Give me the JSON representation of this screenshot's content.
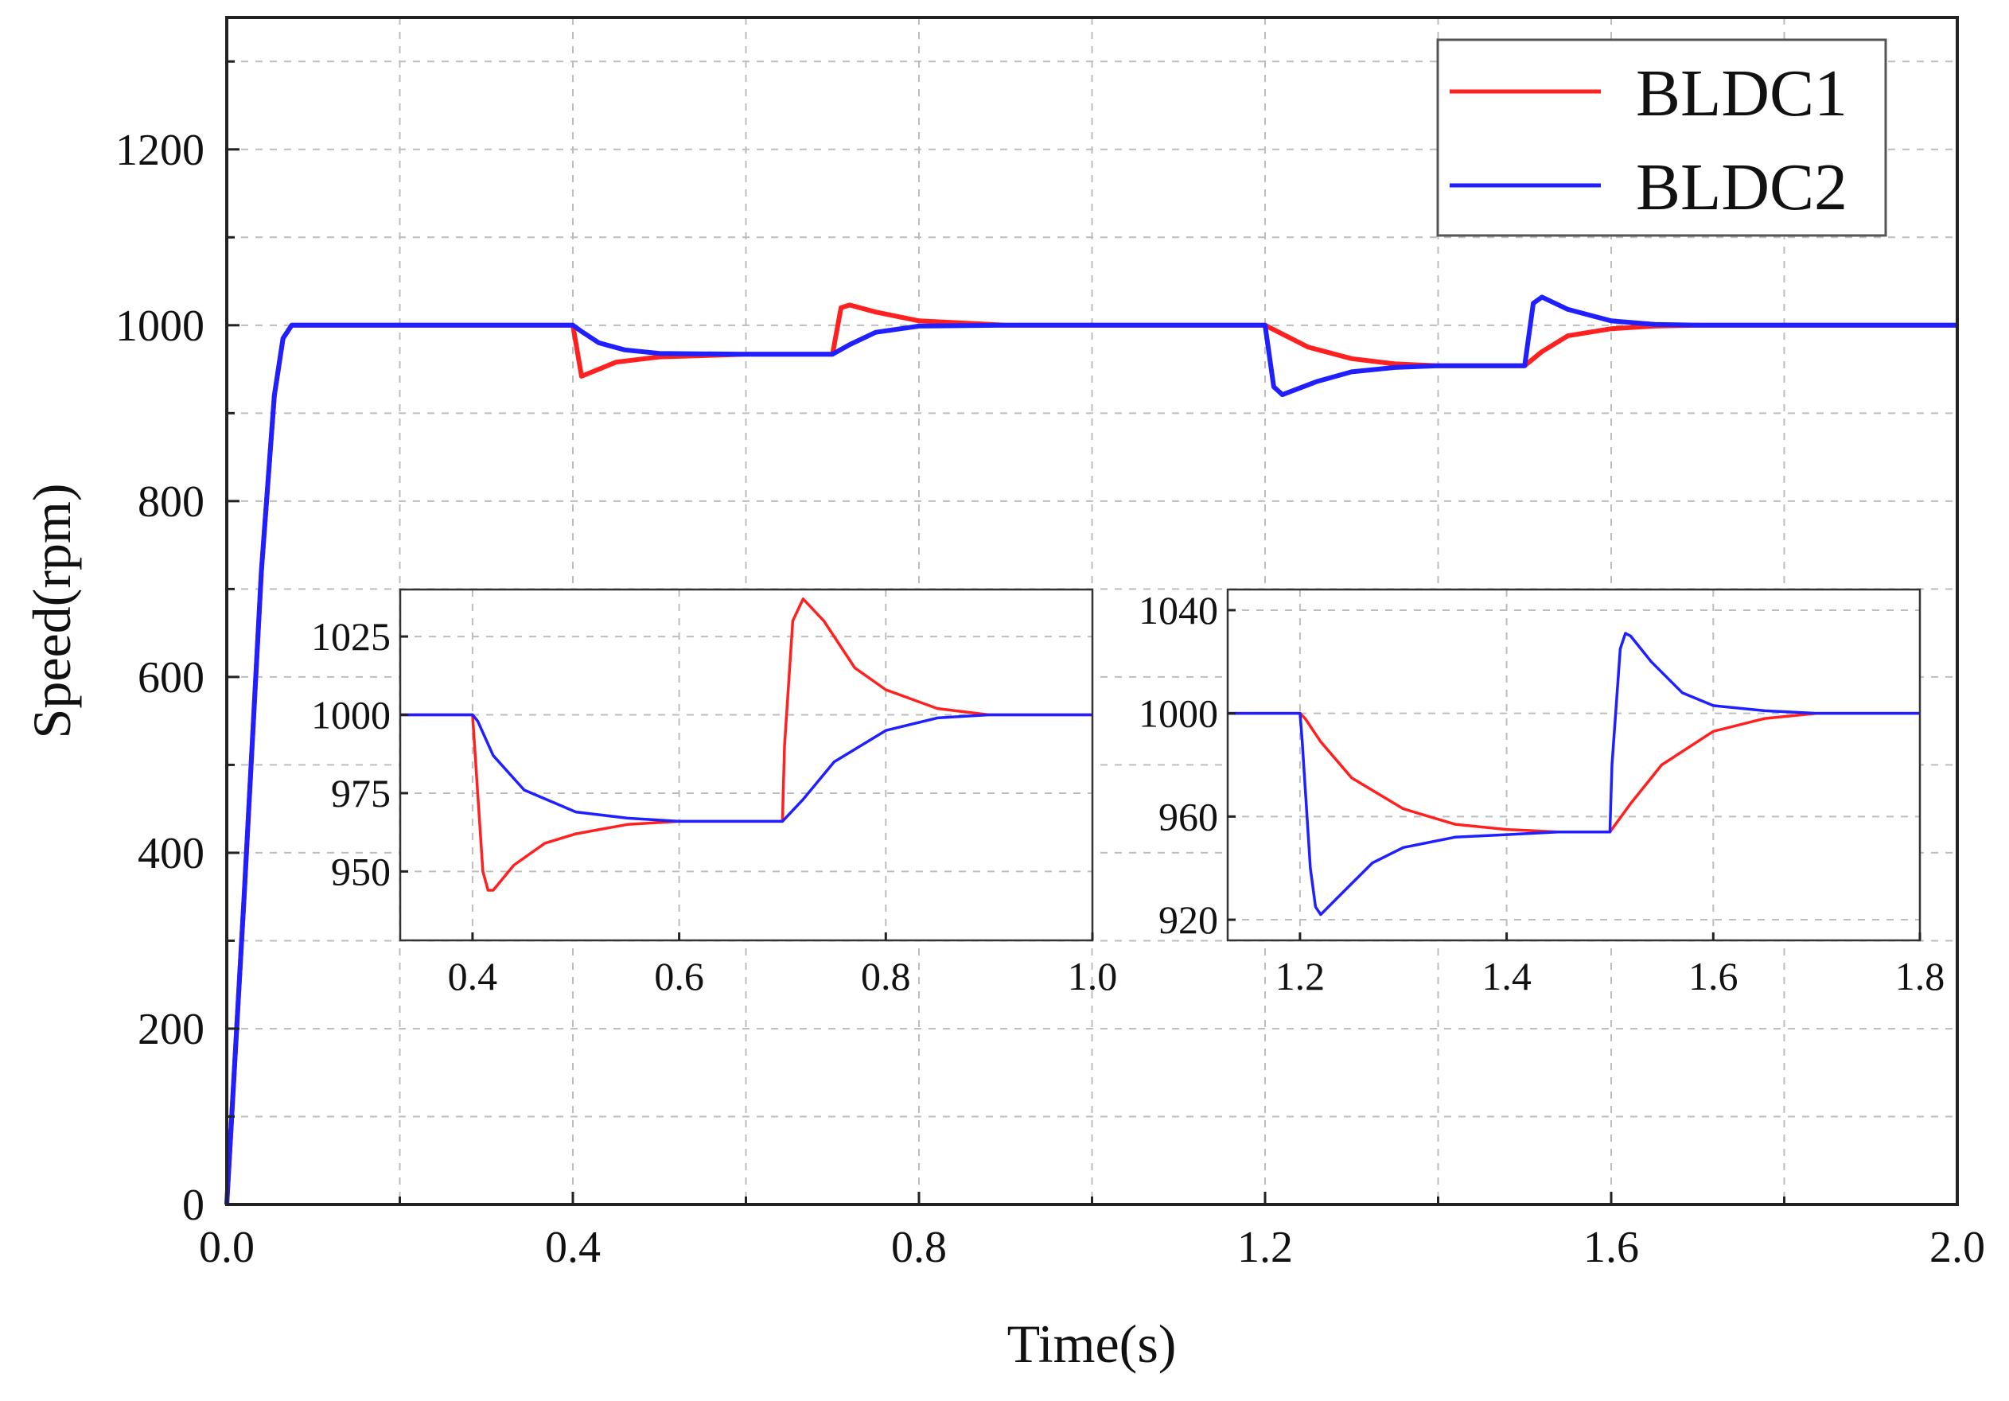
{
  "colors": {
    "bldc1": "#ff2020",
    "bldc2": "#1f1fff"
  },
  "chart_data": [
    {
      "type": "line",
      "xlabel": "Time(s)",
      "ylabel": "Speed(rpm)",
      "xlim": [
        0.0,
        2.0
      ],
      "ylim": [
        0,
        1350
      ],
      "xticks": [
        0.0,
        0.4,
        0.8,
        1.2,
        1.6,
        2.0
      ],
      "xtick_labels": [
        "0.0",
        "0.4",
        "0.8",
        "1.2",
        "1.6",
        "2.0"
      ],
      "yticks": [
        0,
        200,
        400,
        600,
        800,
        1000,
        1200
      ],
      "ytick_labels": [
        "0",
        "200",
        "400",
        "600",
        "800",
        "1000",
        "1200"
      ],
      "grid": true,
      "legend": {
        "placement": "top-right",
        "entries": [
          "BLDC1",
          "BLDC2"
        ]
      },
      "series": [
        {
          "name": "BLDC1",
          "x": [
            0.0,
            0.02,
            0.04,
            0.055,
            0.065,
            0.075,
            0.1,
            0.4,
            0.41,
            0.42,
            0.45,
            0.5,
            0.6,
            0.7,
            0.71,
            0.72,
            0.75,
            0.8,
            0.9,
            1.2,
            1.25,
            1.3,
            1.35,
            1.4,
            1.5,
            1.52,
            1.55,
            1.6,
            1.65,
            1.7,
            2.0
          ],
          "y": [
            0,
            350,
            720,
            920,
            985,
            1000,
            1000,
            1000,
            942,
            946,
            958,
            964,
            967,
            967,
            1020,
            1023,
            1015,
            1005,
            1000,
            1000,
            975,
            962,
            956,
            954,
            954,
            970,
            988,
            996,
            999,
            1000,
            1000
          ]
        },
        {
          "name": "BLDC2",
          "x": [
            0.0,
            0.02,
            0.04,
            0.055,
            0.065,
            0.075,
            0.1,
            0.4,
            0.41,
            0.43,
            0.46,
            0.5,
            0.6,
            0.7,
            0.72,
            0.75,
            0.8,
            0.9,
            1.2,
            1.21,
            1.22,
            1.26,
            1.3,
            1.35,
            1.4,
            1.5,
            1.51,
            1.52,
            1.55,
            1.6,
            1.65,
            1.7,
            2.0
          ],
          "y": [
            0,
            350,
            720,
            920,
            985,
            1000,
            1000,
            1000,
            993,
            980,
            972,
            968,
            967,
            967,
            978,
            992,
            999,
            1000,
            1000,
            930,
            921,
            936,
            947,
            952,
            954,
            954,
            1025,
            1032,
            1018,
            1005,
            1001,
            1000,
            1000
          ]
        }
      ]
    },
    {
      "type": "line",
      "inset": "left",
      "xlim": [
        0.33,
        1.0
      ],
      "ylim": [
        928,
        1040
      ],
      "xticks": [
        0.4,
        0.6,
        0.8,
        1.0
      ],
      "xtick_labels": [
        "0.4",
        "0.6",
        "0.8",
        "1.0"
      ],
      "yticks": [
        950,
        975,
        1000,
        1025
      ],
      "ytick_labels": [
        "950",
        "975",
        "1000",
        "1025"
      ],
      "series": [
        {
          "name": "BLDC1",
          "x": [
            0.33,
            0.4,
            0.402,
            0.41,
            0.415,
            0.42,
            0.44,
            0.47,
            0.5,
            0.55,
            0.6,
            0.65,
            0.7,
            0.702,
            0.71,
            0.72,
            0.74,
            0.77,
            0.8,
            0.85,
            0.9,
            0.95,
            1.0
          ],
          "y": [
            1000,
            1000,
            990,
            950,
            944,
            944,
            952,
            959,
            962,
            965,
            966,
            966,
            966,
            990,
            1030,
            1037,
            1030,
            1015,
            1008,
            1002,
            1000,
            1000,
            1000
          ]
        },
        {
          "name": "BLDC2",
          "x": [
            0.33,
            0.4,
            0.405,
            0.42,
            0.45,
            0.5,
            0.55,
            0.6,
            0.65,
            0.7,
            0.72,
            0.75,
            0.8,
            0.85,
            0.9,
            0.95,
            1.0
          ],
          "y": [
            1000,
            1000,
            998,
            987,
            976,
            969,
            967,
            966,
            966,
            966,
            973,
            985,
            995,
            999,
            1000,
            1000,
            1000
          ]
        }
      ]
    },
    {
      "type": "line",
      "inset": "right",
      "xlim": [
        1.13,
        1.8
      ],
      "ylim": [
        912,
        1048
      ],
      "xticks": [
        1.2,
        1.4,
        1.6,
        1.8
      ],
      "xtick_labels": [
        "1.2",
        "1.4",
        "1.6",
        "1.8"
      ],
      "yticks": [
        920,
        960,
        1000,
        1040
      ],
      "ytick_labels": [
        "920",
        "960",
        "1000",
        "1040"
      ],
      "series": [
        {
          "name": "BLDC1",
          "x": [
            1.13,
            1.2,
            1.205,
            1.22,
            1.25,
            1.3,
            1.35,
            1.4,
            1.45,
            1.5,
            1.52,
            1.55,
            1.6,
            1.65,
            1.7,
            1.75,
            1.8
          ],
          "y": [
            1000,
            1000,
            998,
            989,
            975,
            963,
            957,
            955,
            954,
            954,
            965,
            980,
            993,
            998,
            1000,
            1000,
            1000
          ]
        },
        {
          "name": "BLDC2",
          "x": [
            1.13,
            1.2,
            1.202,
            1.21,
            1.215,
            1.22,
            1.24,
            1.27,
            1.3,
            1.35,
            1.4,
            1.45,
            1.5,
            1.502,
            1.51,
            1.515,
            1.52,
            1.54,
            1.57,
            1.6,
            1.65,
            1.7,
            1.8
          ],
          "y": [
            1000,
            1000,
            990,
            940,
            925,
            922,
            930,
            942,
            948,
            952,
            953,
            954,
            954,
            980,
            1025,
            1031,
            1030,
            1020,
            1008,
            1003,
            1001,
            1000,
            1000
          ]
        }
      ]
    }
  ]
}
